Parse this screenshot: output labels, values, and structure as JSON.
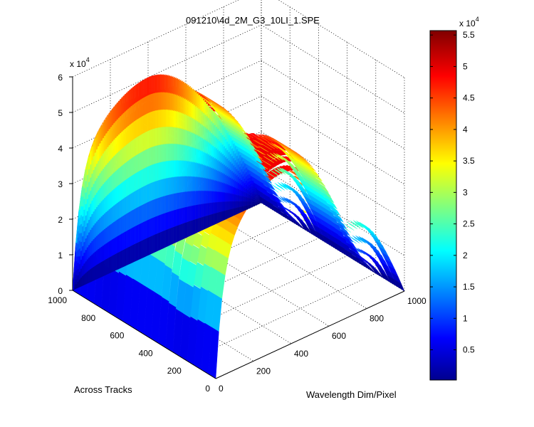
{
  "chart_data": {
    "type": "surface",
    "title": "091210\\4d_2M_G3_10LI_1.SPE",
    "xlabel": "Across Tracks",
    "ylabel": "Wavelength Dim/Pixel",
    "zlabel": "",
    "x_ticks": [
      "0",
      "200",
      "400",
      "600",
      "800",
      "1000"
    ],
    "y_ticks": [
      "0",
      "200",
      "400",
      "600",
      "800",
      "1000"
    ],
    "z_ticks": [
      "0",
      "1",
      "2",
      "3",
      "4",
      "5",
      "6"
    ],
    "z_multiplier": "x 10",
    "z_multiplier_exp": "4",
    "xlim": [
      0,
      1000
    ],
    "ylim": [
      0,
      1000
    ],
    "zlim": [
      0,
      60000
    ],
    "grid": true,
    "colormap": "jet",
    "colorbar": {
      "ticks": [
        "0.5",
        "1",
        "1.5",
        "2",
        "2.5",
        "3",
        "3.5",
        "4",
        "4.5",
        "5",
        "5.5"
      ],
      "values": [
        5000,
        10000,
        15000,
        20000,
        25000,
        30000,
        35000,
        40000,
        45000,
        50000,
        55000
      ],
      "range": [
        200,
        55700
      ],
      "multiplier": "x 10",
      "multiplier_exp": "4"
    },
    "surface": {
      "peak_value": 50000,
      "peak_wavelength_pixel": 400,
      "track_profile": "plateau from 0 to 1000, steep edge at 1000",
      "wavelength_profile": "rises steeply near 0, broad maximum near 300-500, decays to 0 at 1000",
      "tracks_count": 20
    }
  }
}
